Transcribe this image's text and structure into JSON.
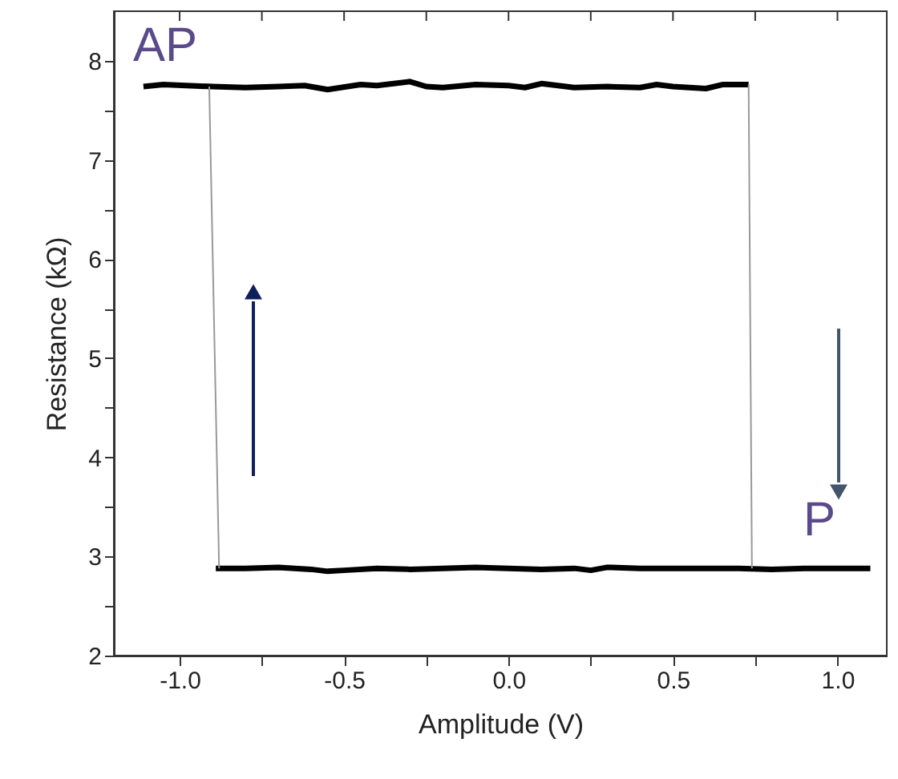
{
  "chart_data": {
    "type": "line",
    "xlabel": "Amplitude (V)",
    "ylabel": "Resistance (kΩ)",
    "xlim": [
      -1.2,
      1.15
    ],
    "ylim": [
      2,
      8.5
    ],
    "xticks": [
      {
        "value": -1.0,
        "label": "-1.0"
      },
      {
        "value": -0.75,
        "label": null
      },
      {
        "value": -0.5,
        "label": "-0.5"
      },
      {
        "value": -0.25,
        "label": null
      },
      {
        "value": 0,
        "label": "0.0"
      },
      {
        "value": 0.25,
        "label": null
      },
      {
        "value": 0.5,
        "label": "0.5"
      },
      {
        "value": 0.75,
        "label": null
      },
      {
        "value": 1.0,
        "label": "1.0"
      }
    ],
    "yticks": [
      2,
      {
        "value": 2.5,
        "label": null
      },
      3,
      {
        "value": 3.5,
        "label": null
      },
      4,
      {
        "value": 4.5,
        "label": null
      },
      5,
      {
        "value": 5.5,
        "label": null
      },
      6,
      {
        "value": 6.5,
        "label": null
      },
      7,
      {
        "value": 7.5,
        "label": null
      },
      8
    ],
    "grid": false,
    "marker": "none",
    "line_style": "solid",
    "series": [
      {
        "color": "#000000",
        "x": [
          -1.11,
          -1.05,
          -0.98,
          -0.9,
          -0.8,
          -0.7,
          -0.62,
          -0.55,
          -0.45,
          -0.4,
          -0.3,
          -0.25,
          -0.2,
          -0.1,
          0.0,
          0.05,
          0.1,
          0.2,
          0.3,
          0.4,
          0.45,
          0.5,
          0.6,
          0.65,
          0.73
        ],
        "values": [
          7.74,
          7.76,
          7.75,
          7.74,
          7.73,
          7.74,
          7.75,
          7.71,
          7.76,
          7.75,
          7.79,
          7.74,
          7.73,
          7.76,
          7.75,
          7.73,
          7.77,
          7.73,
          7.74,
          7.73,
          7.76,
          7.74,
          7.72,
          7.76,
          7.76
        ]
      },
      {
        "color": "#000000",
        "x": [
          -0.89,
          -0.8,
          -0.7,
          -0.6,
          -0.55,
          -0.5,
          -0.4,
          -0.3,
          -0.2,
          -0.1,
          0.0,
          0.1,
          0.2,
          0.25,
          0.3,
          0.4,
          0.5,
          0.6,
          0.7,
          0.8,
          0.9,
          1.0,
          1.1
        ],
        "values": [
          2.88,
          2.88,
          2.89,
          2.87,
          2.85,
          2.86,
          2.88,
          2.87,
          2.88,
          2.89,
          2.88,
          2.87,
          2.88,
          2.86,
          2.89,
          2.88,
          2.88,
          2.88,
          2.88,
          2.87,
          2.88,
          2.88,
          2.88
        ]
      },
      {
        "color": "#999999",
        "x": [
          -0.91,
          -0.88
        ],
        "values": [
          7.74,
          2.88
        ]
      },
      {
        "color": "#999999",
        "x": [
          0.73,
          0.74
        ],
        "values": [
          7.76,
          2.88
        ]
      }
    ],
    "annotations": [
      "AP",
      "P"
    ]
  }
}
